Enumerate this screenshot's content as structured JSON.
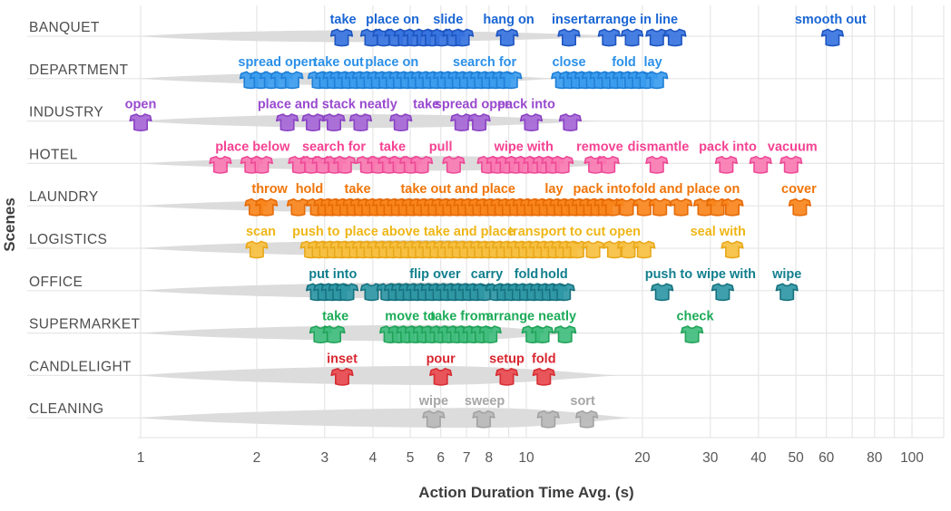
{
  "chart_data": {
    "type": "scatter",
    "xlabel": "Action Duration Time Avg. (s)",
    "ylabel": "Scenes",
    "x_scale": "log",
    "x_ticks": [
      1,
      2,
      3,
      4,
      5,
      6,
      7,
      8,
      10,
      20,
      30,
      40,
      50,
      60,
      80,
      100
    ],
    "x_minor_grid": [
      1,
      2,
      3,
      4,
      5,
      6,
      7,
      8,
      9,
      10,
      20,
      30,
      40,
      50,
      60,
      70,
      80,
      90,
      100
    ],
    "x_range": [
      0.98,
      120
    ],
    "grid": "on",
    "legend": "none",
    "marker_glyph": "t-shirt-icon",
    "violin_color": "#dcdcdc",
    "grid_color": "#e6e6e6",
    "scenes": [
      {
        "name": "BANQUET",
        "fill": "#3673e0",
        "stroke": "#1e55c0",
        "label_color": "#1a66d4",
        "violin": {
          "start": 0.98,
          "peak": 3.4,
          "end": 19.7,
          "half": 6.5
        },
        "points": [
          3.32,
          3.97,
          4.27,
          4.58,
          4.85,
          5.12,
          5.42,
          5.7,
          6.04,
          6.48,
          6.83,
          8.92,
          12.9,
          16.4,
          18.8,
          21.8,
          24.3,
          62.2
        ],
        "labels": [
          {
            "text": "take",
            "x": 3.35
          },
          {
            "text": "place on",
            "x": 4.5
          },
          {
            "text": "slide",
            "x": 6.27
          },
          {
            "text": "hang on",
            "x": 9.0
          },
          {
            "text": "insert",
            "x": 12.95
          },
          {
            "text": "arrange in line",
            "x": 18.9
          },
          {
            "text": "smooth out",
            "x": 61.5
          }
        ]
      },
      {
        "name": "DEPARTMENT",
        "fill": "#3b9cee",
        "stroke": "#1f7fd6",
        "label_color": "#2b90e8",
        "violin": {
          "start": 0.98,
          "peak": 4.2,
          "end": 12.1,
          "half": 7.5
        },
        "points": [
          1.93,
          2.05,
          2.18,
          2.32,
          2.47,
          2.9,
          3.03,
          3.17,
          3.31,
          3.46,
          3.62,
          3.78,
          3.95,
          4.13,
          4.32,
          4.51,
          4.71,
          4.92,
          5.14,
          5.37,
          5.61,
          5.86,
          6.13,
          6.4,
          6.69,
          6.99,
          7.31,
          7.64,
          7.98,
          8.34,
          8.72,
          9.11,
          12.4,
          13.0,
          13.6,
          14.25,
          14.9,
          15.6,
          16.35,
          17.1,
          17.9,
          18.75,
          19.6,
          20.5,
          21.8
        ],
        "labels": [
          {
            "text": "spread open",
            "x": 2.26
          },
          {
            "text": "take out",
            "x": 3.26
          },
          {
            "text": "place on",
            "x": 4.48
          },
          {
            "text": "search for",
            "x": 7.8
          },
          {
            "text": "close",
            "x": 12.9
          },
          {
            "text": "fold",
            "x": 17.9
          },
          {
            "text": "lay",
            "x": 21.3
          }
        ]
      },
      {
        "name": "INDUSTRY",
        "fill": "#a566d6",
        "stroke": "#8a42c4",
        "label_color": "#9949ce",
        "violin": {
          "start": 0.98,
          "peak": 3.8,
          "end": 15.8,
          "half": 7.5
        },
        "points": [
          1.0,
          2.4,
          2.8,
          3.17,
          3.72,
          4.73,
          6.8,
          7.55,
          10.3,
          13.0
        ],
        "labels": [
          {
            "text": "open",
            "x": 1.0
          },
          {
            "text": "place and stack neatly",
            "x": 3.05
          },
          {
            "text": "take",
            "x": 5.5
          },
          {
            "text": "spread open",
            "x": 7.3
          },
          {
            "text": "pack into",
            "x": 10.0
          }
        ]
      },
      {
        "name": "HOTEL",
        "fill": "#f87ab2",
        "stroke": "#ee4896",
        "label_color": "#f54292",
        "violin": {
          "start": 0.98,
          "peak": 5.8,
          "end": 19.2,
          "half": 8
        },
        "points": [
          1.61,
          1.94,
          2.06,
          2.58,
          2.77,
          2.97,
          3.19,
          3.38,
          3.87,
          4.13,
          4.41,
          4.7,
          5.02,
          5.35,
          6.48,
          7.97,
          8.42,
          8.9,
          9.4,
          9.94,
          10.5,
          11.1,
          11.7,
          12.4,
          15.1,
          16.3,
          21.8,
          33.0,
          40.5,
          48.6
        ],
        "labels": [
          {
            "text": "place below",
            "x": 1.95
          },
          {
            "text": "search for",
            "x": 3.17
          },
          {
            "text": "take",
            "x": 4.5
          },
          {
            "text": "pull",
            "x": 6.0
          },
          {
            "text": "wipe with",
            "x": 9.85
          },
          {
            "text": "remove",
            "x": 15.5
          },
          {
            "text": "dismantle",
            "x": 22.0
          },
          {
            "text": "pack into",
            "x": 33.3
          },
          {
            "text": "vacuum",
            "x": 49.0
          }
        ]
      },
      {
        "name": "LAUNDRY",
        "fill": "#f9861c",
        "stroke": "#e66a06",
        "label_color": "#f0750a",
        "violin": {
          "start": 0.98,
          "peak": 6.5,
          "end": 17.9,
          "half": 8.5
        },
        "points": [
          1.99,
          2.12,
          2.56,
          2.87,
          3.0,
          3.13,
          3.27,
          3.42,
          3.57,
          3.73,
          3.9,
          4.08,
          4.26,
          4.45,
          4.65,
          4.86,
          5.08,
          5.31,
          5.55,
          5.8,
          6.06,
          6.33,
          6.62,
          6.92,
          7.23,
          7.56,
          7.9,
          8.26,
          8.63,
          9.02,
          9.43,
          9.85,
          10.3,
          10.76,
          11.25,
          11.76,
          12.29,
          12.84,
          13.42,
          14.03,
          14.66,
          15.32,
          16.01,
          16.73,
          18.2,
          20.2,
          22.2,
          25.2,
          29.0,
          31.3,
          34.2,
          51.2
        ],
        "labels": [
          {
            "text": "throw",
            "x": 2.16
          },
          {
            "text": "hold",
            "x": 2.74
          },
          {
            "text": "take",
            "x": 3.65
          },
          {
            "text": "take out and place",
            "x": 6.65
          },
          {
            "text": "lay",
            "x": 11.8
          },
          {
            "text": "pack into",
            "x": 15.7
          },
          {
            "text": "fold and place on",
            "x": 25.9
          },
          {
            "text": "cover",
            "x": 50.9
          }
        ]
      },
      {
        "name": "LOGISTICS",
        "fill": "#f6c041",
        "stroke": "#e9a81a",
        "label_color": "#efb617",
        "violin": {
          "start": 0.98,
          "peak": 5.8,
          "end": 16.3,
          "half": 9
        },
        "points": [
          2.0,
          2.77,
          2.9,
          3.03,
          3.17,
          3.31,
          3.46,
          3.62,
          3.78,
          3.95,
          4.13,
          4.32,
          4.51,
          4.71,
          4.92,
          5.14,
          5.37,
          5.61,
          5.86,
          6.13,
          6.4,
          6.69,
          6.99,
          7.31,
          7.64,
          7.98,
          8.34,
          8.72,
          9.11,
          9.52,
          9.95,
          10.4,
          10.87,
          11.36,
          11.87,
          12.4,
          12.96,
          13.54,
          14.9,
          16.9,
          18.4,
          20.2,
          34.2
        ],
        "labels": [
          {
            "text": "scan",
            "x": 2.05
          },
          {
            "text": "push to",
            "x": 2.85
          },
          {
            "text": "place above",
            "x": 4.23
          },
          {
            "text": "take and place",
            "x": 7.1
          },
          {
            "text": "transport to",
            "x": 11.2
          },
          {
            "text": "cut open",
            "x": 16.8
          },
          {
            "text": "seal with",
            "x": 31.4
          }
        ]
      },
      {
        "name": "OFFICE",
        "fill": "#2f97a5",
        "stroke": "#16727f",
        "label_color": "#117f8e",
        "violin": {
          "start": 0.98,
          "peak": 5.8,
          "end": 13.8,
          "half": 9
        },
        "points": [
          2.87,
          3.0,
          3.14,
          3.28,
          3.43,
          3.97,
          4.37,
          4.57,
          4.77,
          4.99,
          5.21,
          5.45,
          5.7,
          5.96,
          6.23,
          6.51,
          6.81,
          7.12,
          7.44,
          7.78,
          8.37,
          8.75,
          9.15,
          9.57,
          10.0,
          10.46,
          10.94,
          11.44,
          11.96,
          12.5,
          22.5,
          32.3,
          47.4
        ],
        "labels": [
          {
            "text": "put into",
            "x": 3.15
          },
          {
            "text": "flip over",
            "x": 5.8
          },
          {
            "text": "carry",
            "x": 7.9
          },
          {
            "text": "fold",
            "x": 10.0
          },
          {
            "text": "hold",
            "x": 11.8
          },
          {
            "text": "push to",
            "x": 23.4
          },
          {
            "text": "wipe with",
            "x": 33.0
          },
          {
            "text": "wipe",
            "x": 47.4
          }
        ]
      },
      {
        "name": "SUPERMARKET",
        "fill": "#40bd7d",
        "stroke": "#21a359",
        "label_color": "#1cab58",
        "violin": {
          "start": 0.98,
          "peak": 5.5,
          "end": 13.5,
          "half": 9
        },
        "points": [
          2.93,
          3.17,
          4.45,
          4.68,
          4.92,
          5.17,
          5.43,
          5.7,
          6.0,
          6.3,
          6.62,
          6.95,
          7.3,
          7.67,
          8.06,
          10.4,
          11.0,
          12.6,
          26.9
        ],
        "labels": [
          {
            "text": "take",
            "x": 3.2
          },
          {
            "text": "move to",
            "x": 5.0
          },
          {
            "text": "take from",
            "x": 6.73
          },
          {
            "text": "arrange neatly",
            "x": 10.3
          },
          {
            "text": "check",
            "x": 27.4
          }
        ]
      },
      {
        "name": "CANDLELIGHT",
        "fill": "#e8494e",
        "stroke": "#d62d33",
        "label_color": "#d82730",
        "violin": {
          "start": 0.98,
          "peak": 5.5,
          "end": 17.2,
          "half": 10.5
        },
        "points": [
          3.33,
          6.0,
          8.9,
          11.1
        ],
        "labels": [
          {
            "text": "inset",
            "x": 3.33
          },
          {
            "text": "pour",
            "x": 6.0
          },
          {
            "text": "setup",
            "x": 8.9
          },
          {
            "text": "fold",
            "x": 11.1
          }
        ]
      },
      {
        "name": "CLEANING",
        "fill": "#b8b8b8",
        "stroke": "#a2a2a2",
        "label_color": "#a6a6a6",
        "violin": {
          "start": 0.98,
          "peak": 7.6,
          "end": 18.7,
          "half": 11
        },
        "points": [
          5.75,
          7.75,
          11.4,
          14.35
        ],
        "labels": [
          {
            "text": "wipe",
            "x": 5.75
          },
          {
            "text": "sweep",
            "x": 7.8
          },
          {
            "text": "sort",
            "x": 14.0
          }
        ]
      }
    ]
  }
}
